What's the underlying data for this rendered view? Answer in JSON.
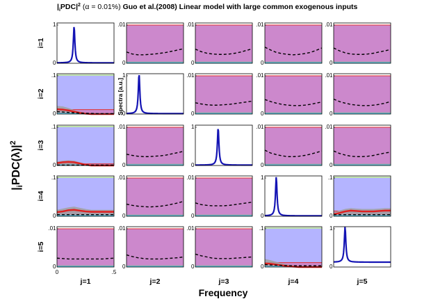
{
  "title": {
    "prefix": "|",
    "sub": "i",
    "mid": "PDC|",
    "sup": "2",
    "alpha": " (α = 0.01%)",
    "rest": " Guo et al.(2008) Linear model with large common exogenous inputs"
  },
  "ylabel": {
    "pre": "|",
    "sub": "i",
    "main": "PDC(λ)|",
    "sup": "2"
  },
  "xlabel": "Frequency",
  "row_labels": [
    "i=1",
    "i=2",
    "i=3",
    "i=4",
    "i=5"
  ],
  "col_labels": [
    "j=1",
    "j=2",
    "j=3",
    "j=4",
    "j=5"
  ],
  "spectra_label": "Spectra [a.u.]",
  "x_ticks": [
    "0",
    ".5"
  ],
  "colors": {
    "spectrum": "#1414b4",
    "purple_fill": "#cc88cc",
    "blue_fill": "#b4b4ff",
    "threshold_red": "#e03030",
    "green_line": "#a8d890",
    "cyan_line": "#40c8e8",
    "gray_band": "#a0a0a0",
    "pdc_red": "#e02020",
    "dashed": "#000000"
  },
  "chart_data": {
    "type": "line",
    "grid": "5x5 subplots",
    "xlim": [
      0,
      0.5
    ],
    "x": [
      0,
      0.05,
      0.1,
      0.15,
      0.2,
      0.25,
      0.3,
      0.35,
      0.4,
      0.45,
      0.5
    ],
    "panels": [
      {
        "row": 1,
        "col": 1,
        "kind": "spectrum",
        "ylim": [
          0,
          1
        ],
        "yticks": [
          "0",
          "1"
        ],
        "peak_x": 0.15,
        "peak_y": 0.92,
        "baseline": 0.01
      },
      {
        "row": 1,
        "col": 2,
        "kind": "purple",
        "ylim": [
          0,
          0.01
        ],
        "yticks": [
          "0",
          ".01"
        ],
        "dashed": [
          0.0028,
          0.0023,
          0.0021,
          0.0021,
          0.0022,
          0.0023,
          0.0025,
          0.0027,
          0.003,
          0.0033,
          0.0036
        ]
      },
      {
        "row": 1,
        "col": 3,
        "kind": "purple",
        "ylim": [
          0,
          0.01
        ],
        "yticks": [
          "0",
          ".01"
        ],
        "dashed": [
          0.0035,
          0.0029,
          0.0025,
          0.0023,
          0.0022,
          0.0022,
          0.0023,
          0.0025,
          0.0028,
          0.0032,
          0.0036
        ]
      },
      {
        "row": 1,
        "col": 4,
        "kind": "purple",
        "ylim": [
          0,
          0.01
        ],
        "yticks": [
          "0",
          ".01"
        ],
        "dashed": [
          0.004,
          0.0033,
          0.0027,
          0.0024,
          0.0022,
          0.0021,
          0.0022,
          0.0024,
          0.0027,
          0.0032,
          0.0038
        ]
      },
      {
        "row": 1,
        "col": 5,
        "kind": "purple",
        "ylim": [
          0,
          0.01
        ],
        "yticks": [
          "0",
          ".01"
        ],
        "dashed": [
          0.0038,
          0.0031,
          0.0026,
          0.0023,
          0.0022,
          0.0022,
          0.0023,
          0.0025,
          0.0028,
          0.0031,
          0.0034
        ]
      },
      {
        "row": 2,
        "col": 1,
        "kind": "blue",
        "ylim": [
          0,
          0.1
        ],
        "yticks": [
          "0",
          ".1"
        ],
        "threshold": 0.011,
        "pdc": [
          0.012,
          0.011,
          0.009,
          0.006,
          0.003,
          0.001,
          0,
          0,
          0,
          0,
          0
        ],
        "dashed": [
          0.006,
          0.005,
          0.004,
          0.003,
          0.0025,
          0.002,
          0.0015,
          0.001,
          0.001,
          0.001,
          0.001
        ],
        "band_hi": [
          0.02,
          0.019,
          0.015,
          0.01,
          0.006,
          0.003,
          0.002,
          0.002,
          0.002,
          0.002,
          0.002
        ]
      },
      {
        "row": 2,
        "col": 2,
        "kind": "spectrum",
        "ylim": [
          0,
          1
        ],
        "yticks": [
          "0",
          "1"
        ],
        "peak_x": 0.11,
        "peak_y": 1.0,
        "baseline": 0.01
      },
      {
        "row": 2,
        "col": 3,
        "kind": "purple",
        "ylim": [
          0,
          0.01
        ],
        "yticks": [
          "0",
          ".01"
        ],
        "dashed": [
          0.0028,
          0.0025,
          0.0023,
          0.0022,
          0.0022,
          0.0023,
          0.0024,
          0.0026,
          0.0028,
          0.003,
          0.0032
        ]
      },
      {
        "row": 2,
        "col": 4,
        "kind": "purple",
        "ylim": [
          0,
          0.01
        ],
        "yticks": [
          "0",
          ".01"
        ],
        "dashed": [
          0.0036,
          0.0031,
          0.0027,
          0.0024,
          0.0022,
          0.0021,
          0.0021,
          0.0022,
          0.0024,
          0.0027,
          0.003
        ]
      },
      {
        "row": 2,
        "col": 5,
        "kind": "purple",
        "ylim": [
          0,
          0.01
        ],
        "yticks": [
          "0",
          ".01"
        ],
        "dashed": [
          0.0037,
          0.0031,
          0.0027,
          0.0024,
          0.0022,
          0.0021,
          0.0021,
          0.0022,
          0.0024,
          0.0027,
          0.0031
        ]
      },
      {
        "row": 3,
        "col": 1,
        "kind": "blue",
        "ylim": [
          0,
          0.1
        ],
        "yticks": [
          "0",
          ".1"
        ],
        "threshold": 0.004,
        "pdc": [
          0.006,
          0.008,
          0.009,
          0.008,
          0.005,
          0.002,
          0,
          0,
          0,
          0,
          0
        ],
        "dashed": [
          0.001,
          0.001,
          0.001,
          0.001,
          0.001,
          0.001,
          0.001,
          0.001,
          0.001,
          0.001,
          0.001
        ],
        "band_hi": [
          0.01,
          0.012,
          0.013,
          0.012,
          0.008,
          0.004,
          0.002,
          0.002,
          0.002,
          0.002,
          0.002
        ]
      },
      {
        "row": 3,
        "col": 2,
        "kind": "purple",
        "ylim": [
          0,
          0.01
        ],
        "yticks": [
          "0",
          ".01"
        ],
        "dashed": [
          0.0028,
          0.0025,
          0.0023,
          0.0022,
          0.0022,
          0.0023,
          0.0024,
          0.0026,
          0.0029,
          0.0032,
          0.0035
        ]
      },
      {
        "row": 3,
        "col": 3,
        "kind": "spectrum",
        "ylim": [
          0,
          1
        ],
        "yticks": [
          "0",
          "1"
        ],
        "peak_x": 0.2,
        "peak_y": 0.94,
        "baseline": 0.01
      },
      {
        "row": 3,
        "col": 4,
        "kind": "purple",
        "ylim": [
          0,
          0.01
        ],
        "yticks": [
          "0",
          ".01"
        ],
        "dashed": [
          0.0038,
          0.0031,
          0.0027,
          0.0024,
          0.0022,
          0.0022,
          0.0023,
          0.0025,
          0.0028,
          0.0032,
          0.0036
        ]
      },
      {
        "row": 3,
        "col": 5,
        "kind": "purple",
        "ylim": [
          0,
          0.01
        ],
        "yticks": [
          "0",
          ".01"
        ],
        "dashed": [
          0.0036,
          0.003,
          0.0026,
          0.0023,
          0.0022,
          0.0022,
          0.0023,
          0.0025,
          0.0028,
          0.0031,
          0.0033
        ]
      },
      {
        "row": 4,
        "col": 1,
        "kind": "blue",
        "ylim": [
          0,
          0.1
        ],
        "yticks": [
          "0",
          ".1"
        ],
        "threshold": 0.013,
        "pdc": [
          0.01,
          0.012,
          0.015,
          0.016,
          0.014,
          0.012,
          0.011,
          0.011,
          0.011,
          0.011,
          0.011
        ],
        "dashed": [
          0.004,
          0.004,
          0.004,
          0.004,
          0.004,
          0.004,
          0.004,
          0.004,
          0.004,
          0.004,
          0.004
        ],
        "band_hi": [
          0.016,
          0.019,
          0.022,
          0.024,
          0.021,
          0.018,
          0.016,
          0.016,
          0.016,
          0.016,
          0.016
        ]
      },
      {
        "row": 4,
        "col": 2,
        "kind": "purple",
        "ylim": [
          0,
          0.01
        ],
        "yticks": [
          "0",
          ".01"
        ],
        "dashed": [
          0.003,
          0.0027,
          0.0025,
          0.0024,
          0.0023,
          0.0024,
          0.0025,
          0.0027,
          0.003,
          0.0033,
          0.0037
        ]
      },
      {
        "row": 4,
        "col": 3,
        "kind": "purple",
        "ylim": [
          0,
          0.01
        ],
        "yticks": [
          "0",
          ".01"
        ],
        "dashed": [
          0.0033,
          0.0029,
          0.0027,
          0.0026,
          0.0026,
          0.0026,
          0.0027,
          0.0029,
          0.0031,
          0.0033,
          0.0035
        ]
      },
      {
        "row": 4,
        "col": 4,
        "kind": "spectrum",
        "ylim": [
          0,
          1
        ],
        "yticks": [
          "0",
          "1"
        ],
        "peak_x": 0.1,
        "peak_y": 0.98,
        "baseline": 0.01
      },
      {
        "row": 4,
        "col": 5,
        "kind": "blue",
        "ylim": [
          0,
          0.1
        ],
        "yticks": [
          "0",
          ".1"
        ],
        "threshold": 0.013,
        "pdc": [
          0.005,
          0.008,
          0.012,
          0.014,
          0.013,
          0.012,
          0.012,
          0.012,
          0.013,
          0.014,
          0.014
        ],
        "dashed": [
          0.004,
          0.004,
          0.004,
          0.004,
          0.004,
          0.004,
          0.004,
          0.004,
          0.004,
          0.004,
          0.004
        ],
        "band_hi": [
          0.01,
          0.014,
          0.018,
          0.02,
          0.019,
          0.018,
          0.018,
          0.018,
          0.019,
          0.02,
          0.02
        ]
      },
      {
        "row": 5,
        "col": 1,
        "kind": "purple",
        "ylim": [
          0,
          0.01
        ],
        "yticks": [
          "0",
          ".01"
        ],
        "dashed": [
          0.0022,
          0.0021,
          0.002,
          0.002,
          0.002,
          0.002,
          0.002,
          0.002,
          0.002,
          0.0021,
          0.0022
        ]
      },
      {
        "row": 5,
        "col": 2,
        "kind": "purple",
        "ylim": [
          0,
          0.01
        ],
        "yticks": [
          "0",
          ".01"
        ],
        "dashed": [
          0.003,
          0.0026,
          0.0023,
          0.0021,
          0.002,
          0.002,
          0.002,
          0.0021,
          0.0022,
          0.0023,
          0.0025
        ]
      },
      {
        "row": 5,
        "col": 3,
        "kind": "purple",
        "ylim": [
          0,
          0.01
        ],
        "yticks": [
          "0",
          ".01"
        ],
        "dashed": [
          0.0032,
          0.0028,
          0.0025,
          0.0022,
          0.0021,
          0.0021,
          0.0021,
          0.0022,
          0.0023,
          0.0024,
          0.0025
        ]
      },
      {
        "row": 5,
        "col": 4,
        "kind": "blue",
        "ylim": [
          0,
          0.1
        ],
        "yticks": [
          "0",
          ".1"
        ],
        "threshold": 0.011,
        "pdc": [
          0.009,
          0.008,
          0.006,
          0.004,
          0.002,
          0.001,
          0,
          0,
          0,
          0,
          0
        ],
        "dashed": [
          0.006,
          0.005,
          0.0045,
          0.004,
          0.0035,
          0.003,
          0.003,
          0.003,
          0.003,
          0.003,
          0.003
        ],
        "band_hi": [
          0.02,
          0.017,
          0.013,
          0.009,
          0.006,
          0.004,
          0.003,
          0.003,
          0.003,
          0.003,
          0.003
        ]
      },
      {
        "row": 5,
        "col": 5,
        "kind": "spectrum",
        "ylim": [
          0,
          1
        ],
        "yticks": [
          "0",
          "1"
        ],
        "peak_x": 0.1,
        "peak_y": 1.0,
        "baseline": 0.12
      }
    ]
  }
}
